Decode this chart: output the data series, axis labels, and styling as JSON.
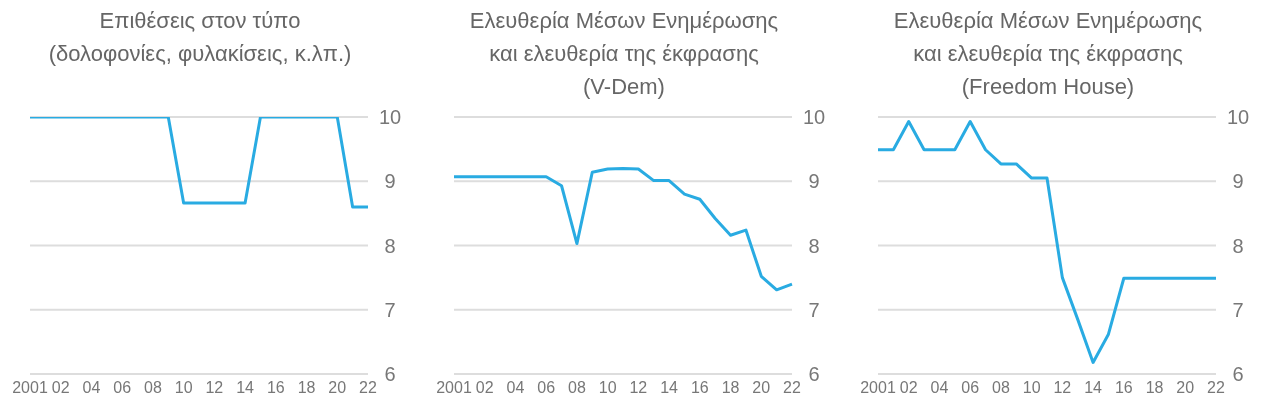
{
  "chart_data": [
    {
      "type": "line",
      "title": "Επιθέσεις στον τύπο\n(δολοφονίες, φυλακίσεις, κ.λπ.)",
      "categories": [
        "2001",
        null,
        "02",
        null,
        "04",
        null,
        "06",
        null,
        "08",
        null,
        "10",
        null,
        "12",
        null,
        "14",
        null,
        "16",
        null,
        "18",
        null,
        "20",
        null,
        "22"
      ],
      "series": [
        {
          "color": "#29abe2",
          "values": [
            10,
            10,
            10,
            10,
            10,
            10,
            10,
            10,
            10,
            10,
            8.66,
            8.66,
            8.66,
            8.66,
            8.66,
            10,
            10,
            10,
            10,
            10,
            10,
            8.6,
            8.6
          ]
        }
      ],
      "ylim": [
        6,
        10
      ],
      "yticks": [
        6,
        7,
        8,
        9,
        10
      ],
      "grid": "y"
    },
    {
      "type": "line",
      "title": "Ελευθερία Μέσων Ενημέρωσης\nκαι ελευθερία της έκφρασης\n(V-Dem)",
      "categories": [
        "2001",
        null,
        "02",
        null,
        "04",
        null,
        "06",
        null,
        "08",
        null,
        "10",
        null,
        "12",
        null,
        "14",
        null,
        "16",
        null,
        "18",
        null,
        "20",
        null,
        "22"
      ],
      "series": [
        {
          "color": "#29abe2",
          "values": [
            9.07,
            9.07,
            9.07,
            9.07,
            9.07,
            9.07,
            9.07,
            8.93,
            8.03,
            9.14,
            9.19,
            9.2,
            9.19,
            9.01,
            9.01,
            8.8,
            8.72,
            8.42,
            8.16,
            8.24,
            7.52,
            7.31,
            7.4
          ]
        }
      ],
      "ylim": [
        6,
        10
      ],
      "yticks": [
        6,
        7,
        8,
        9,
        10
      ],
      "grid": "y"
    },
    {
      "type": "line",
      "title": "Ελευθερία Μέσων Ενημέρωσης\nκαι ελευθερία της έκφρασης\n(Freedom House)",
      "categories": [
        "2001",
        null,
        "02",
        null,
        "04",
        null,
        "06",
        null,
        "08",
        null,
        "10",
        null,
        "12",
        null,
        "14",
        null,
        "16",
        null,
        "18",
        null,
        "20",
        null,
        "22"
      ],
      "series": [
        {
          "color": "#29abe2",
          "values": [
            9.49,
            9.49,
            9.93,
            9.49,
            9.49,
            9.49,
            9.93,
            9.49,
            9.27,
            9.27,
            9.05,
            9.05,
            7.5,
            6.85,
            6.18,
            6.62,
            7.49,
            7.49,
            7.49,
            7.49,
            7.49,
            7.49,
            7.49
          ]
        }
      ],
      "ylim": [
        6,
        10
      ],
      "yticks": [
        6,
        7,
        8,
        9,
        10
      ],
      "grid": "y"
    }
  ]
}
